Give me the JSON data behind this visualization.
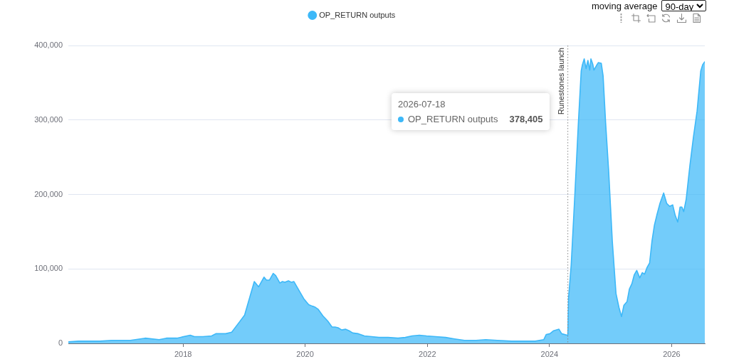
{
  "chart_data": {
    "type": "area",
    "x": [
      "2016-02-15",
      "2016-04-16",
      "2016-08-22",
      "2016-10-30",
      "2017-02-20",
      "2017-05-19",
      "2017-08-11",
      "2017-09-23",
      "2017-11-25",
      "2018-02-13",
      "2018-03-10",
      "2018-04-30",
      "2018-06-21",
      "2018-07-16",
      "2018-09-13",
      "2018-10-19",
      "2018-12-05",
      "2019-01-04",
      "2019-03-03",
      "2019-03-29",
      "2019-04-30",
      "2019-05-15",
      "2019-06-02",
      "2019-06-24",
      "2019-07-09",
      "2019-08-03",
      "2019-08-18",
      "2019-09-02",
      "2019-09-23",
      "2019-10-12",
      "2019-10-26",
      "2019-11-28",
      "2019-12-24",
      "2020-01-22",
      "2020-02-13",
      "2020-02-27",
      "2020-03-18",
      "2020-04-16",
      "2020-05-15",
      "2020-06-10",
      "2020-06-28",
      "2020-07-16",
      "2020-08-07",
      "2020-08-29",
      "2020-09-20",
      "2020-10-12",
      "2020-11-14",
      "2020-12-20",
      "2021-02-02",
      "2021-03-18",
      "2021-05-11",
      "2021-07-09",
      "2021-08-22",
      "2021-10-01",
      "2021-11-14",
      "2021-12-27",
      "2022-02-20",
      "2022-04-20",
      "2022-06-13",
      "2022-08-11",
      "2022-10-19",
      "2022-12-16",
      "2023-02-24",
      "2023-05-19",
      "2023-08-14",
      "2023-10-08",
      "2023-11-28",
      "2023-12-13",
      "2024-01-04",
      "2024-01-26",
      "2024-02-27",
      "2024-03-14",
      "2024-04-16",
      "2024-04-20",
      "2024-04-24",
      "2024-05-10",
      "2024-06-01",
      "2024-06-22",
      "2024-07-09",
      "2024-07-16",
      "2024-07-27",
      "2024-08-07",
      "2024-08-18",
      "2024-08-29",
      "2024-09-05",
      "2024-09-16",
      "2024-09-23",
      "2024-10-08",
      "2024-10-19",
      "2024-11-06",
      "2024-11-17",
      "2024-12-02",
      "2024-12-20",
      "2025-01-11",
      "2025-02-02",
      "2025-02-20",
      "2025-03-07",
      "2025-03-21",
      "2025-04-09",
      "2025-04-23",
      "2025-05-08",
      "2025-05-22",
      "2025-06-06",
      "2025-06-24",
      "2025-07-09",
      "2025-07-23",
      "2025-08-07",
      "2025-08-22",
      "2025-09-05",
      "2025-09-20",
      "2025-10-04",
      "2025-10-23",
      "2025-11-14",
      "2025-12-02",
      "2025-12-20",
      "2026-01-07",
      "2026-01-22",
      "2026-02-06",
      "2026-02-20",
      "2026-03-03",
      "2026-03-14",
      "2026-03-29",
      "2026-04-20",
      "2026-05-11",
      "2026-06-02",
      "2026-06-24",
      "2026-07-05",
      "2026-07-18"
    ],
    "series": [
      {
        "name": "OP_RETURN outputs",
        "color": "#3db8f8",
        "values": [
          2000,
          3000,
          3000,
          4000,
          4000,
          7000,
          5000,
          7000,
          7000,
          11000,
          9000,
          9000,
          10000,
          13000,
          13000,
          15000,
          29000,
          38000,
          83000,
          76000,
          89000,
          85000,
          85000,
          94000,
          91000,
          81000,
          83000,
          82000,
          84000,
          82000,
          83000,
          70000,
          60000,
          52000,
          50000,
          49000,
          46000,
          37000,
          30000,
          22000,
          22000,
          21000,
          18000,
          19000,
          17000,
          14000,
          13000,
          10000,
          9000,
          8000,
          8000,
          7000,
          8000,
          10000,
          11000,
          10000,
          9000,
          8000,
          6000,
          4000,
          4000,
          5000,
          4000,
          3000,
          3000,
          3000,
          5000,
          12000,
          13000,
          17000,
          19000,
          13000,
          11000,
          11000,
          60000,
          105000,
          200000,
          296000,
          366000,
          374000,
          382000,
          369000,
          380000,
          367000,
          382000,
          375000,
          367000,
          373000,
          377000,
          376000,
          359000,
          296000,
          232000,
          137000,
          67000,
          48000,
          36000,
          51000,
          56000,
          73000,
          80000,
          92000,
          98000,
          88000,
          95000,
          93000,
          102000,
          108000,
          137000,
          159000,
          172000,
          188000,
          202000,
          188000,
          184000,
          186000,
          172000,
          163000,
          183000,
          183000,
          177000,
          194000,
          239000,
          277000,
          312000,
          366000,
          374000,
          378405
        ]
      }
    ],
    "xlim": [
      "2016-02-15",
      "2026-07-18"
    ],
    "xticks": [
      "2018",
      "2020",
      "2022",
      "2024",
      "2026"
    ],
    "ylim": [
      0,
      400000
    ],
    "yticks": [
      0,
      {
        "value": 100000,
        "label": "100,000"
      },
      {
        "value": 200000,
        "label": "200,000"
      },
      {
        "value": 300000,
        "label": "300,000"
      },
      {
        "value": 400000,
        "label": "400,000"
      }
    ],
    "grid": "y",
    "legend": "top",
    "ref_lines": [
      {
        "axis": "x",
        "value": "2024-04-20",
        "label": "Runestones launch",
        "color": "#888888",
        "line_style": "dotted"
      }
    ],
    "annotations": [
      "moving average",
      "90-day",
      "2026-07-18",
      "OP_RETURN outputs",
      "378,405"
    ]
  }
}
